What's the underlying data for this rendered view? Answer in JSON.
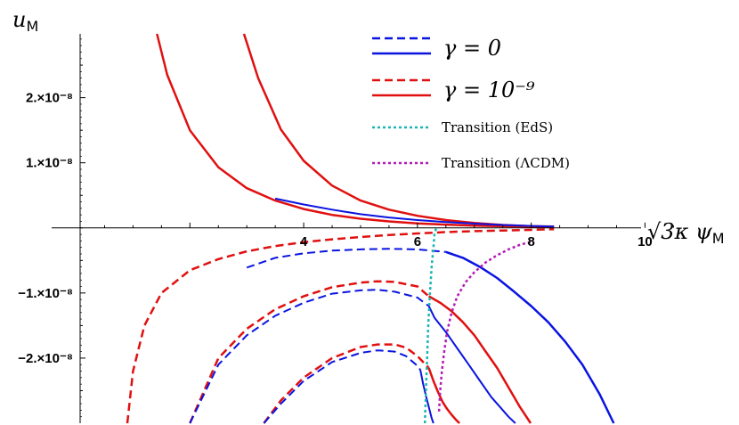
{
  "chart_data": {
    "type": "line",
    "xlabel": "√3κ ψ_M",
    "ylabel": "u_M",
    "xlabel_text": "√3κ ψ",
    "xlabel_sub": "M",
    "ylabel_text": "u",
    "ylabel_sub": "M",
    "xlim": [
      0.07,
      10.87
    ],
    "ylim": [
      -3e-08,
      2.98e-08
    ],
    "x_ticks": [
      {
        "value": 4,
        "label": "4"
      },
      {
        "value": 6,
        "label": "6"
      },
      {
        "value": 8,
        "label": "8"
      },
      {
        "value": 10,
        "label": "10"
      }
    ],
    "y_ticks": [
      {
        "value": 2e-08,
        "label": "2.×10⁻⁸"
      },
      {
        "value": 1e-08,
        "label": "1.×10⁻⁸"
      },
      {
        "value": -1e-08,
        "label": "−1.×10⁻⁸"
      },
      {
        "value": -2e-08,
        "label": "−2.×10⁻⁸"
      }
    ],
    "legend_position": "top-right",
    "legend": [
      {
        "label": "γ = 0",
        "color": "#0a14e0",
        "styles": [
          "dashed",
          "solid"
        ]
      },
      {
        "label": "γ = 10⁻⁹",
        "color": "#e01010",
        "styles": [
          "dashed",
          "solid"
        ]
      },
      {
        "label": "Transition (EdS)",
        "color": "#1ab5b5",
        "styles": [
          "dotted"
        ]
      },
      {
        "label": "Transition (ΛCDM)",
        "color": "#b51ab5",
        "styles": [
          "dotted"
        ]
      }
    ],
    "series": [
      {
        "color": "#e01010",
        "style": "solid",
        "width": 2.5,
        "x": [
          2.95,
          3.2,
          3.6,
          4.0,
          4.5,
          5.0,
          5.5,
          6.0,
          6.5,
          7.0,
          7.5,
          8.0,
          8.4
        ],
        "y": [
          2.98e-08,
          2.3e-08,
          1.51e-08,
          1.03e-08,
          6.5e-09,
          4.2e-09,
          2.8e-09,
          1.85e-09,
          1.2e-09,
          7.5e-10,
          4.5e-10,
          2.5e-10,
          2e-10
        ]
      },
      {
        "color": "#e01010",
        "style": "solid",
        "width": 2.5,
        "x": [
          1.42,
          1.6,
          2.0,
          2.5,
          3.0,
          3.5,
          4.0,
          4.5,
          5.0,
          5.5,
          6.0,
          6.5,
          7.0,
          7.5,
          8.0,
          8.4
        ],
        "y": [
          2.98e-08,
          2.35e-08,
          1.5e-08,
          9.3e-09,
          6.1e-09,
          4.2e-09,
          2.9e-09,
          2e-09,
          1.4e-09,
          1e-09,
          7e-10,
          5e-10,
          3.5e-10,
          2.5e-10,
          2e-10,
          1.8e-10
        ]
      },
      {
        "color": "#0a14e0",
        "style": "solid",
        "width": 2,
        "x": [
          3.5,
          4.0,
          4.5,
          5.0,
          5.5,
          6.0,
          6.5,
          7.0,
          7.5,
          8.0,
          8.4
        ],
        "y": [
          4.5e-09,
          3.6e-09,
          2.8e-09,
          2.1e-09,
          1.6e-09,
          1.2e-09,
          9e-10,
          6.5e-10,
          4.5e-10,
          3e-10,
          2.2e-10
        ]
      },
      {
        "color": "#e01010",
        "style": "dashed",
        "width": 2.5,
        "x": [
          0.9,
          1.0,
          1.2,
          1.5,
          2.0,
          2.5,
          3.0,
          3.5,
          4.0,
          4.5,
          5.0,
          5.5,
          6.0,
          6.5,
          7.0,
          7.5,
          8.0,
          8.4
        ],
        "y": [
          -3e-08,
          -2.2e-08,
          -1.5e-08,
          -1e-08,
          -6.5e-09,
          -4.8e-09,
          -3.6e-09,
          -2.8e-09,
          -2.2e-09,
          -1.75e-09,
          -1.4e-09,
          -1.1e-09,
          -8.5e-10,
          -6.5e-10,
          -5e-10,
          -4e-10,
          -3e-10,
          -2e-10
        ]
      },
      {
        "color": "#0a14e0",
        "style": "dashed",
        "width": 2,
        "x": [
          3.0,
          3.5,
          4.0,
          4.5,
          5.0,
          5.5,
          6.0,
          6.5
        ],
        "y": [
          -6.1e-09,
          -4.6e-09,
          -3.9e-09,
          -3.5e-09,
          -3.3e-09,
          -3.2e-09,
          -3.3e-09,
          -3.7e-09
        ]
      },
      {
        "color": "#0a14e0",
        "style": "solid",
        "width": 2.5,
        "x": [
          6.5,
          6.8,
          7.1,
          7.4,
          7.7,
          8.0,
          8.3,
          8.6,
          8.9,
          9.2,
          9.45
        ],
        "y": [
          -3.7e-09,
          -4.6e-09,
          -6e-09,
          -7.7e-09,
          -9.8e-09,
          -1.2e-08,
          -1.45e-08,
          -1.75e-08,
          -2.1e-08,
          -2.55e-08,
          -3e-08
        ]
      },
      {
        "color": "#e01010",
        "style": "dashed",
        "width": 2.5,
        "x": [
          2.0,
          2.5,
          3.0,
          3.5,
          4.0,
          4.5,
          5.0,
          5.3,
          5.6,
          6.0,
          6.2
        ],
        "y": [
          -3e-08,
          -2e-08,
          -1.55e-08,
          -1.25e-08,
          -1.05e-08,
          -9.1e-09,
          -8.4e-09,
          -8.2e-09,
          -8.3e-09,
          -9e-09,
          -1.05e-08
        ]
      },
      {
        "color": "#0a14e0",
        "style": "dashed",
        "width": 2,
        "x": [
          2.0,
          2.5,
          3.0,
          3.5,
          4.0,
          4.5,
          5.0,
          5.3,
          5.6,
          6.0,
          6.2
        ],
        "y": [
          -3e-08,
          -2.1e-08,
          -1.65e-08,
          -1.35e-08,
          -1.15e-08,
          -1.01e-08,
          -9.6e-09,
          -9.5e-09,
          -9.8e-09,
          -1.07e-08,
          -1.2e-08
        ]
      },
      {
        "color": "#e01010",
        "style": "solid",
        "width": 2.5,
        "x": [
          6.2,
          6.4,
          6.6,
          6.8,
          7.0,
          7.2,
          7.4,
          7.6,
          7.8,
          7.99
        ],
        "y": [
          -1.05e-08,
          -1.15e-08,
          -1.28e-08,
          -1.45e-08,
          -1.65e-08,
          -1.9e-08,
          -2.15e-08,
          -2.45e-08,
          -2.75e-08,
          -3e-08
        ]
      },
      {
        "color": "#0a14e0",
        "style": "solid",
        "width": 2,
        "x": [
          6.2,
          6.3,
          6.5,
          6.7,
          6.9,
          7.1,
          7.3,
          7.45,
          7.6,
          7.72
        ],
        "y": [
          -1.2e-08,
          -1.38e-08,
          -1.6e-08,
          -1.85e-08,
          -2.1e-08,
          -2.35e-08,
          -2.6e-08,
          -2.75e-08,
          -2.9e-08,
          -3e-08
        ]
      },
      {
        "color": "#e01010",
        "style": "dashed",
        "width": 2.5,
        "x": [
          3.3,
          3.6,
          4.0,
          4.5,
          5.0,
          5.3,
          5.6,
          5.8,
          6.0,
          6.2
        ],
        "y": [
          -3e-08,
          -2.65e-08,
          -2.3e-08,
          -2e-08,
          -1.83e-08,
          -1.79e-08,
          -1.79e-08,
          -1.84e-08,
          -1.97e-08,
          -2.15e-08
        ]
      },
      {
        "color": "#0a14e0",
        "style": "dashed",
        "width": 2,
        "x": [
          3.3,
          3.6,
          4.0,
          4.5,
          5.0,
          5.3,
          5.6,
          5.8,
          6.0,
          6.05
        ],
        "y": [
          -3e-08,
          -2.7e-08,
          -2.35e-08,
          -2.06e-08,
          -1.92e-08,
          -1.88e-08,
          -1.9e-08,
          -1.97e-08,
          -2.12e-08,
          -2.18e-08
        ]
      },
      {
        "color": "#e01010",
        "style": "solid",
        "width": 2.5,
        "x": [
          6.2,
          6.28,
          6.36,
          6.44,
          6.52,
          6.6,
          6.68,
          6.74
        ],
        "y": [
          -2.15e-08,
          -2.35e-08,
          -2.52e-08,
          -2.67e-08,
          -2.78e-08,
          -2.87e-08,
          -2.95e-08,
          -3e-08
        ]
      },
      {
        "color": "#0a14e0",
        "style": "solid",
        "width": 2,
        "x": [
          6.05,
          6.1,
          6.15,
          6.2,
          6.25,
          6.28
        ],
        "y": [
          -2.18e-08,
          -2.4e-08,
          -2.58e-08,
          -2.75e-08,
          -2.92e-08,
          -3e-08
        ]
      },
      {
        "color": "#1ab5b5",
        "style": "dotted",
        "width": 2.5,
        "x": [
          6.13,
          6.15,
          6.17,
          6.19,
          6.22,
          6.25,
          6.28,
          6.3,
          6.33
        ],
        "y": [
          -3e-08,
          -2.5e-08,
          -2e-08,
          -1.5e-08,
          -1e-08,
          -6e-09,
          -3e-09,
          -1e-09,
          0
        ]
      },
      {
        "color": "#b51ab5",
        "style": "dotted",
        "width": 2.5,
        "x": [
          6.38,
          6.4,
          6.43,
          6.47,
          6.52,
          6.6,
          6.7,
          6.85,
          7.0,
          7.2,
          7.4,
          7.6,
          7.8,
          7.9,
          8.0
        ],
        "y": [
          -2.82e-08,
          -2.5e-08,
          -2.2e-08,
          -1.9e-08,
          -1.6e-08,
          -1.3e-08,
          -1.05e-08,
          -8.3e-09,
          -6.8e-09,
          -5.3e-09,
          -4.2e-09,
          -3.3e-09,
          -2.6e-09,
          -2.35e-09,
          -2.2e-09
        ]
      }
    ]
  }
}
